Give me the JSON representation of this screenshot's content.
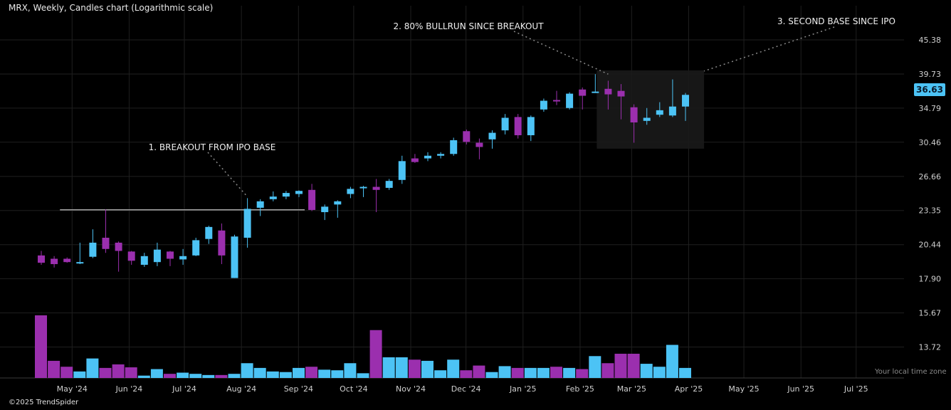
{
  "header": {
    "title": "MRX, Weekly, Candles chart (Logarithmic scale)"
  },
  "footer": {
    "copyright": "©2025 TrendSpider",
    "timezone": "Your local time zone"
  },
  "price_tag": "36.63",
  "colors": {
    "up": "#4cc3f5",
    "down": "#9b2fae",
    "grid": "#1f1f1f",
    "annotation": "#8a8a8a",
    "base_box": "#1a1a1a"
  },
  "chart_data": {
    "type": "candlestick",
    "title": "MRX, Weekly, Candles chart (Logarithmic scale)",
    "y_scale": "log",
    "ylim": [
      13.2,
      47.5
    ],
    "y_ticks": [
      "45.38",
      "39.73",
      "34.79",
      "30.46",
      "26.66",
      "23.35",
      "20.44",
      "17.90",
      "15.67",
      "13.72"
    ],
    "x_ticks": [
      "May '24",
      "Jun '24",
      "Jul '24",
      "Aug '24",
      "Sep '24",
      "Oct '24",
      "Nov '24",
      "Dec '24",
      "Jan '25",
      "Feb '25",
      "Mar '25",
      "Apr '25",
      "May '25",
      "Jun '25",
      "Jul '25"
    ],
    "candles": [
      {
        "week": "2024-04-22",
        "open": 19.6,
        "high": 19.95,
        "low": 18.9,
        "close": 19.05
      },
      {
        "week": "2024-04-29",
        "open": 19.35,
        "high": 19.55,
        "low": 18.7,
        "close": 18.95
      },
      {
        "week": "2024-05-06",
        "open": 19.35,
        "high": 19.45,
        "low": 19.05,
        "close": 19.1
      },
      {
        "week": "2024-05-13",
        "open": 19.0,
        "high": 20.6,
        "low": 18.95,
        "close": 19.1
      },
      {
        "week": "2024-05-20",
        "open": 19.5,
        "high": 21.7,
        "low": 19.4,
        "close": 20.6
      },
      {
        "week": "2024-05-27",
        "open": 21.0,
        "high": 23.45,
        "low": 19.8,
        "close": 20.1
      },
      {
        "week": "2024-06-03",
        "open": 20.6,
        "high": 20.7,
        "low": 18.4,
        "close": 19.95
      },
      {
        "week": "2024-06-10",
        "open": 19.9,
        "high": 19.95,
        "low": 18.9,
        "close": 19.2
      },
      {
        "week": "2024-06-17",
        "open": 18.9,
        "high": 19.8,
        "low": 18.75,
        "close": 19.55
      },
      {
        "week": "2024-06-24",
        "open": 19.1,
        "high": 20.6,
        "low": 18.8,
        "close": 20.05
      },
      {
        "week": "2024-07-01",
        "open": 19.9,
        "high": 19.95,
        "low": 18.8,
        "close": 19.35
      },
      {
        "week": "2024-07-08",
        "open": 19.3,
        "high": 20.1,
        "low": 18.9,
        "close": 19.55
      },
      {
        "week": "2024-07-15",
        "open": 19.6,
        "high": 21.0,
        "low": 19.55,
        "close": 20.8
      },
      {
        "week": "2024-07-22",
        "open": 20.9,
        "high": 22.0,
        "low": 20.5,
        "close": 21.9
      },
      {
        "week": "2024-07-29",
        "open": 21.6,
        "high": 22.2,
        "low": 18.95,
        "close": 19.6
      },
      {
        "week": "2024-08-05",
        "open": 17.95,
        "high": 21.25,
        "low": 17.95,
        "close": 21.1
      },
      {
        "week": "2024-08-12",
        "open": 21.0,
        "high": 24.5,
        "low": 20.2,
        "close": 23.5
      },
      {
        "week": "2024-08-19",
        "open": 23.6,
        "high": 24.4,
        "low": 22.85,
        "close": 24.2
      },
      {
        "week": "2024-08-26",
        "open": 24.4,
        "high": 25.15,
        "low": 24.2,
        "close": 24.65
      },
      {
        "week": "2024-09-02",
        "open": 24.65,
        "high": 25.2,
        "low": 24.4,
        "close": 25.0
      },
      {
        "week": "2024-09-09",
        "open": 24.9,
        "high": 25.25,
        "low": 24.6,
        "close": 25.2
      },
      {
        "week": "2024-09-16",
        "open": 25.3,
        "high": 25.9,
        "low": 23.3,
        "close": 23.4
      },
      {
        "week": "2024-09-23",
        "open": 23.2,
        "high": 23.9,
        "low": 22.5,
        "close": 23.7
      },
      {
        "week": "2024-09-30",
        "open": 23.9,
        "high": 24.3,
        "low": 22.7,
        "close": 24.2
      },
      {
        "week": "2024-10-07",
        "open": 24.9,
        "high": 25.6,
        "low": 24.5,
        "close": 25.4
      },
      {
        "week": "2024-10-14",
        "open": 25.5,
        "high": 25.7,
        "low": 24.6,
        "close": 25.6
      },
      {
        "week": "2024-10-21",
        "open": 25.6,
        "high": 26.4,
        "low": 23.2,
        "close": 25.3
      },
      {
        "week": "2024-10-28",
        "open": 25.5,
        "high": 26.4,
        "low": 25.3,
        "close": 26.2
      },
      {
        "week": "2024-11-04",
        "open": 26.3,
        "high": 28.9,
        "low": 25.9,
        "close": 28.3
      },
      {
        "week": "2024-11-11",
        "open": 28.6,
        "high": 29.1,
        "low": 28.1,
        "close": 28.2
      },
      {
        "week": "2024-11-18",
        "open": 28.6,
        "high": 29.3,
        "low": 28.3,
        "close": 28.9
      },
      {
        "week": "2024-11-25",
        "open": 28.9,
        "high": 29.3,
        "low": 28.6,
        "close": 29.1
      },
      {
        "week": "2024-12-02",
        "open": 29.1,
        "high": 31.0,
        "low": 28.9,
        "close": 30.7
      },
      {
        "week": "2024-12-09",
        "open": 31.8,
        "high": 32.0,
        "low": 30.2,
        "close": 30.5
      },
      {
        "week": "2024-12-16",
        "open": 30.4,
        "high": 30.9,
        "low": 28.5,
        "close": 29.9
      },
      {
        "week": "2024-12-23",
        "open": 30.8,
        "high": 31.9,
        "low": 29.7,
        "close": 31.6
      },
      {
        "week": "2024-12-30",
        "open": 31.9,
        "high": 34.0,
        "low": 31.4,
        "close": 33.5
      },
      {
        "week": "2025-01-06",
        "open": 33.6,
        "high": 34.0,
        "low": 30.9,
        "close": 31.3
      },
      {
        "week": "2025-01-13",
        "open": 31.3,
        "high": 33.8,
        "low": 30.6,
        "close": 33.6
      },
      {
        "week": "2025-01-20",
        "open": 34.6,
        "high": 36.1,
        "low": 34.3,
        "close": 35.8
      },
      {
        "week": "2025-01-27",
        "open": 35.9,
        "high": 37.2,
        "low": 35.2,
        "close": 35.7
      },
      {
        "week": "2025-02-03",
        "open": 34.8,
        "high": 37.0,
        "low": 34.6,
        "close": 36.8
      },
      {
        "week": "2025-02-10",
        "open": 37.4,
        "high": 37.7,
        "low": 34.6,
        "close": 36.5
      },
      {
        "week": "2025-02-17",
        "open": 37.0,
        "high": 39.7,
        "low": 36.9,
        "close": 37.1
      },
      {
        "week": "2025-02-24",
        "open": 37.5,
        "high": 38.7,
        "low": 34.6,
        "close": 36.7
      },
      {
        "week": "2025-03-03",
        "open": 37.2,
        "high": 38.2,
        "low": 33.3,
        "close": 36.4
      },
      {
        "week": "2025-03-10",
        "open": 34.9,
        "high": 35.3,
        "low": 30.4,
        "close": 32.9
      },
      {
        "week": "2025-03-17",
        "open": 33.1,
        "high": 34.8,
        "low": 32.6,
        "close": 33.5
      },
      {
        "week": "2025-03-24",
        "open": 33.9,
        "high": 35.6,
        "low": 33.6,
        "close": 34.5
      },
      {
        "week": "2025-03-31",
        "open": 33.8,
        "high": 38.9,
        "low": 33.6,
        "close": 35.0
      },
      {
        "week": "2025-04-07",
        "open": 35.0,
        "high": 36.9,
        "low": 33.1,
        "close": 36.63
      }
    ],
    "volume": [
      5.3,
      1.45,
      0.95,
      0.55,
      1.65,
      0.85,
      1.15,
      0.9,
      0.2,
      0.75,
      0.35,
      0.45,
      0.35,
      0.25,
      0.25,
      0.35,
      1.25,
      0.85,
      0.55,
      0.5,
      0.85,
      0.95,
      0.7,
      0.65,
      1.25,
      0.4,
      4.05,
      1.75,
      1.75,
      1.55,
      1.45,
      0.65,
      1.55,
      0.65,
      1.05,
      0.5,
      1.0,
      0.85,
      0.85,
      0.85,
      0.95,
      0.85,
      0.75,
      1.85,
      1.25,
      2.05,
      2.05,
      1.2,
      0.95,
      2.8,
      0.85
    ],
    "annotations": [
      {
        "label": "1. BREAKOUT FROM IPO BASE"
      },
      {
        "label": "2. 80% BULLRUN SINCE BREAKOUT"
      },
      {
        "label": "3. SECOND BASE SINCE IPO"
      }
    ],
    "ipo_base_resistance": 23.35,
    "second_base_range": [
      29.7,
      40.3
    ],
    "grid": true
  }
}
